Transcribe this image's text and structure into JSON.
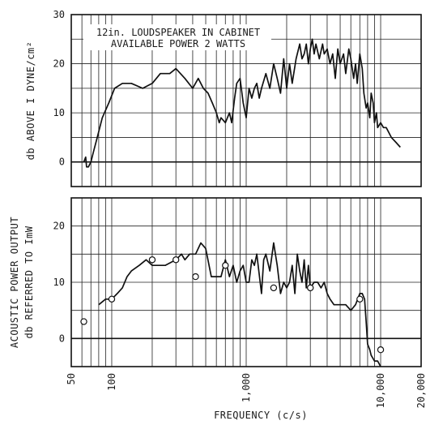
{
  "chart_data": [
    {
      "type": "line",
      "title_lines": [
        "12in. LOUDSPEAKER IN CABINET",
        "AVAILABLE POWER 2 WATTS"
      ],
      "ylabel": "db ABOVE I DYNE/cm²",
      "xscale": "log",
      "xlim": [
        50,
        20000
      ],
      "ylim": [
        -5,
        30
      ],
      "yticks": [
        0,
        10,
        20,
        30
      ],
      "grid": true,
      "series": [
        {
          "x": [
            62,
            64,
            65,
            67,
            70,
            73,
            78,
            85,
            95,
            105,
            120,
            140,
            170,
            200,
            230,
            270,
            300,
            350,
            400,
            440,
            480,
            520,
            560,
            600,
            630,
            650,
            700,
            750,
            780,
            820,
            850,
            900,
            950,
            1000,
            1050,
            1100,
            1150,
            1200,
            1250,
            1300,
            1400,
            1500,
            1600,
            1700,
            1800,
            1900,
            2000,
            2100,
            2200,
            2350,
            2500,
            2600,
            2700,
            2800,
            2900,
            3000,
            3100,
            3200,
            3300,
            3500,
            3700,
            3800,
            4000,
            4200,
            4400,
            4600,
            4800,
            5000,
            5300,
            5500,
            5800,
            6000,
            6300,
            6500,
            6700,
            7000,
            7300,
            7500,
            7800,
            8000,
            8300,
            8500,
            8800,
            9000,
            9300,
            9500,
            10000,
            10500,
            11000,
            11500,
            12000,
            13000,
            14000
          ],
          "y": [
            0,
            1,
            -1,
            -1,
            0,
            2,
            5,
            9,
            12,
            15,
            16,
            16,
            15,
            16,
            18,
            18,
            19,
            17,
            15,
            17,
            15,
            14,
            12,
            10,
            8,
            9,
            8,
            10,
            8,
            13,
            16,
            17,
            12,
            9,
            15,
            13,
            15,
            16,
            13,
            15,
            18,
            15,
            20,
            17,
            14,
            21,
            15,
            20,
            16,
            21,
            24,
            21,
            22,
            24,
            20,
            23,
            25,
            22,
            24,
            21,
            24,
            22,
            23,
            20,
            22,
            17,
            23,
            20,
            22,
            18,
            23,
            21,
            17,
            20,
            16,
            22,
            19,
            14,
            11,
            12,
            9,
            14,
            12,
            8,
            10,
            7,
            8,
            7,
            7,
            6,
            5,
            4,
            3
          ]
        }
      ]
    },
    {
      "type": "line",
      "ylabel": "ACOUSTIC POWER OUTPUT",
      "ylabel2": "db REFERRED TO ImW",
      "xlabel": "FREQUENCY (c/s)",
      "xscale": "log",
      "xlim": [
        50,
        20000
      ],
      "ylim": [
        -5,
        25
      ],
      "xticks": [
        {
          "value": 50,
          "label": "50"
        },
        {
          "value": 100,
          "label": "100"
        },
        {
          "value": 1000,
          "label": "1,000"
        },
        {
          "value": 10000,
          "label": "10,000"
        },
        {
          "value": 20000,
          "label": "20,000"
        }
      ],
      "yticks": [
        0,
        10,
        20
      ],
      "grid": true,
      "series": [
        {
          "x": [
            80,
            90,
            100,
            110,
            120,
            130,
            140,
            160,
            180,
            200,
            250,
            300,
            330,
            350,
            380,
            420,
            460,
            500,
            550,
            600,
            650,
            700,
            750,
            800,
            850,
            900,
            950,
            1000,
            1050,
            1100,
            1150,
            1200,
            1300,
            1350,
            1400,
            1500,
            1600,
            1700,
            1800,
            1900,
            2000,
            2100,
            2200,
            2300,
            2400,
            2500,
            2600,
            2700,
            2800,
            2900,
            3000,
            3200,
            3400,
            3600,
            3800,
            4000,
            4200,
            4500,
            5000,
            5500,
            6000,
            6500,
            7000,
            7300,
            7600,
            7800,
            8000,
            8300,
            8500,
            9000,
            9500,
            10000
          ],
          "y": [
            6,
            7,
            7,
            8,
            9,
            11,
            12,
            13,
            14,
            13,
            13,
            14,
            15,
            14,
            15,
            15,
            17,
            16,
            11,
            11,
            11,
            14,
            11,
            13,
            10,
            12,
            13,
            10,
            10,
            14,
            13,
            15,
            8,
            14,
            15,
            12,
            17,
            13,
            8,
            10,
            9,
            10,
            13,
            8,
            15,
            12,
            10,
            14,
            9,
            13,
            9,
            10,
            10,
            9,
            10,
            8,
            7,
            6,
            6,
            6,
            5,
            6,
            8,
            8,
            7,
            3,
            -1,
            -2,
            -3,
            -4,
            -4,
            -5
          ]
        },
        {
          "type": "scatter",
          "x": [
            62,
            100,
            200,
            300,
            420,
            700,
            1600,
            3000,
            7000,
            10000
          ],
          "y": [
            3,
            7,
            14,
            14,
            11,
            13,
            9,
            9,
            7,
            -2
          ]
        }
      ]
    }
  ]
}
